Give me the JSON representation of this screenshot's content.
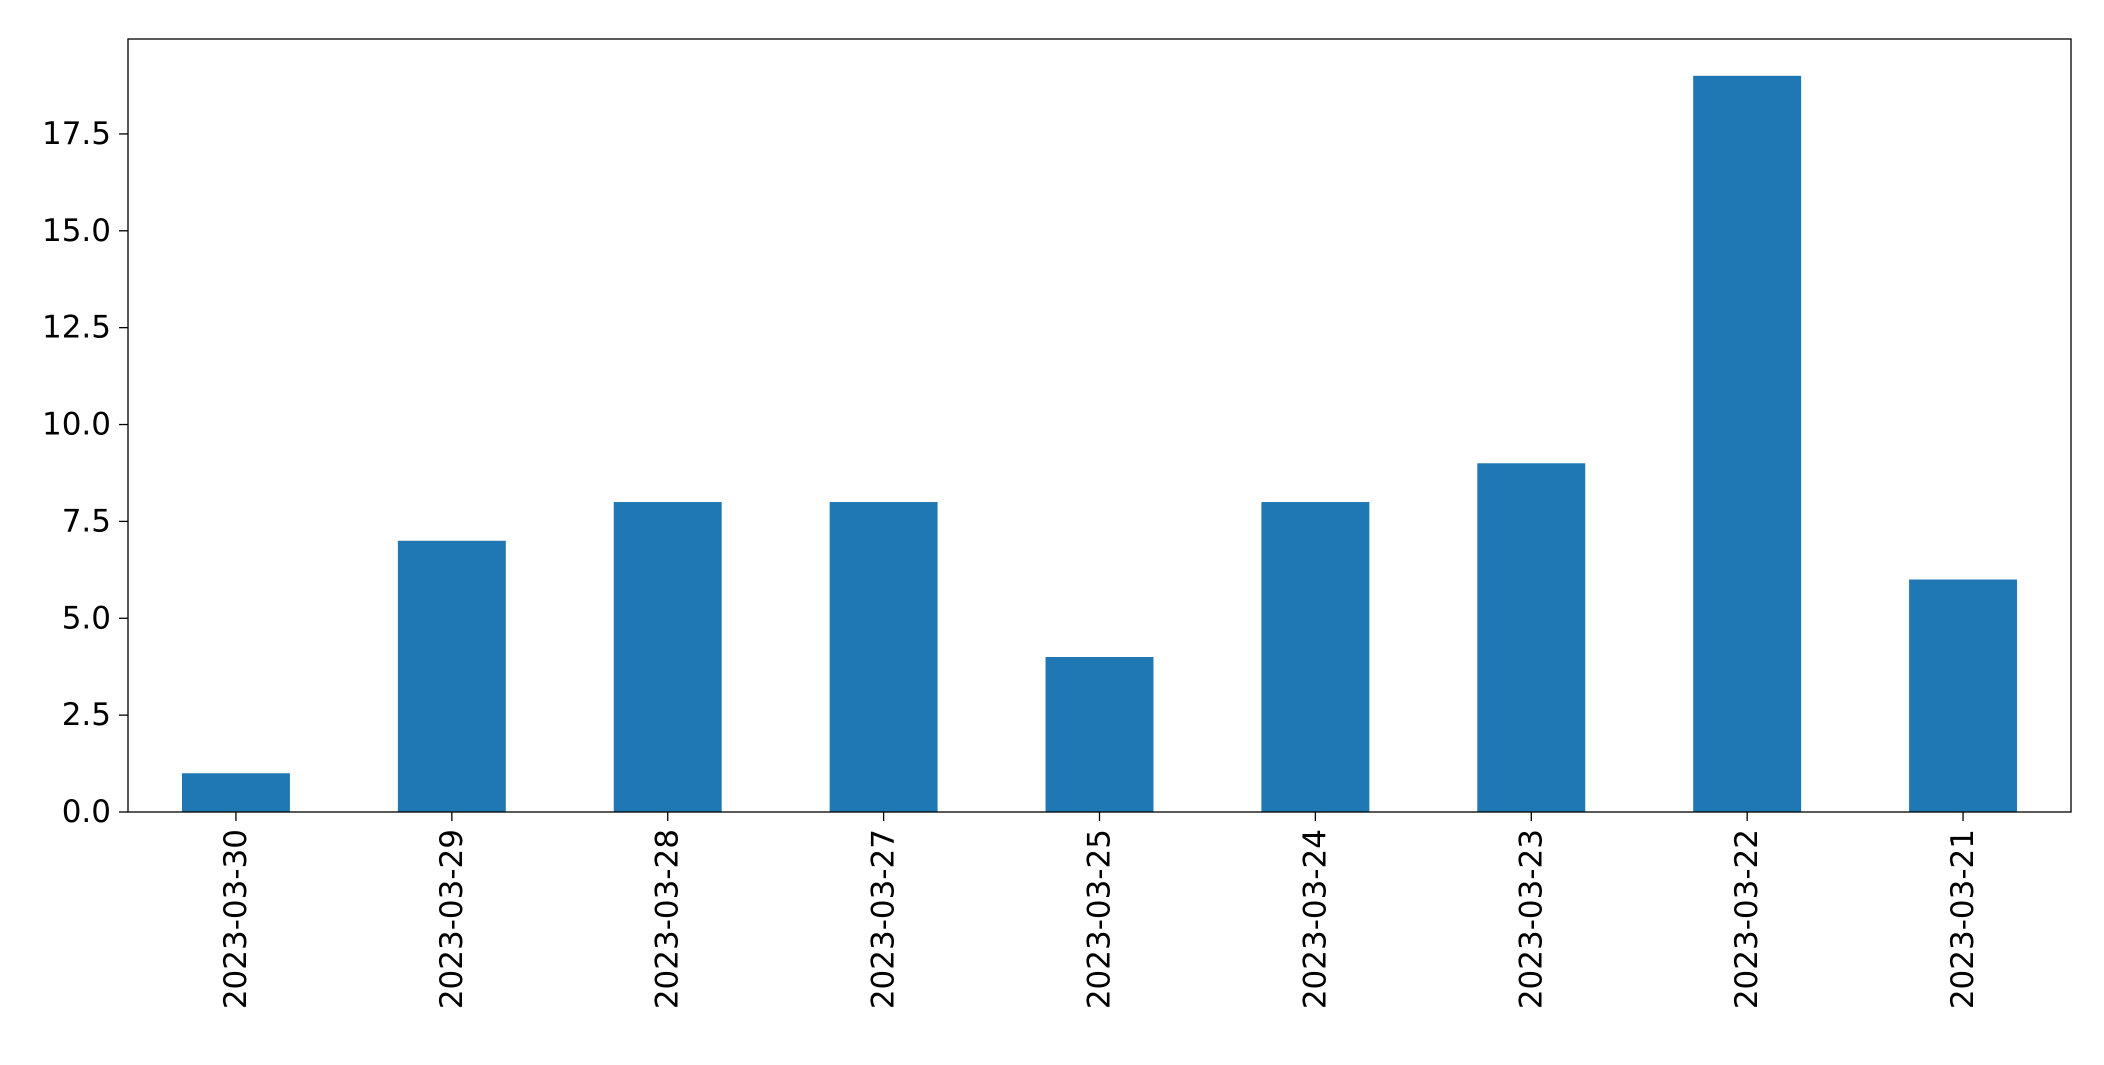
{
  "chart_data": {
    "type": "bar",
    "title": "",
    "xlabel": "",
    "ylabel": "",
    "categories": [
      "2023-03-30",
      "2023-03-29",
      "2023-03-28",
      "2023-03-27",
      "2023-03-25",
      "2023-03-24",
      "2023-03-23",
      "2023-03-22",
      "2023-03-21"
    ],
    "values": [
      1,
      7,
      8,
      8,
      4,
      8,
      9,
      19,
      6
    ],
    "ylim": [
      0,
      19.95
    ],
    "yticks": [
      "0.0",
      "2.5",
      "5.0",
      "7.5",
      "10.0",
      "12.5",
      "15.0",
      "17.5"
    ],
    "ytick_values": [
      0,
      2.5,
      5,
      7.5,
      10,
      12.5,
      15,
      17.5
    ],
    "bar_color": "#1f77b4",
    "grid": false,
    "legend": "none",
    "xtick_rotation": "vertical"
  }
}
